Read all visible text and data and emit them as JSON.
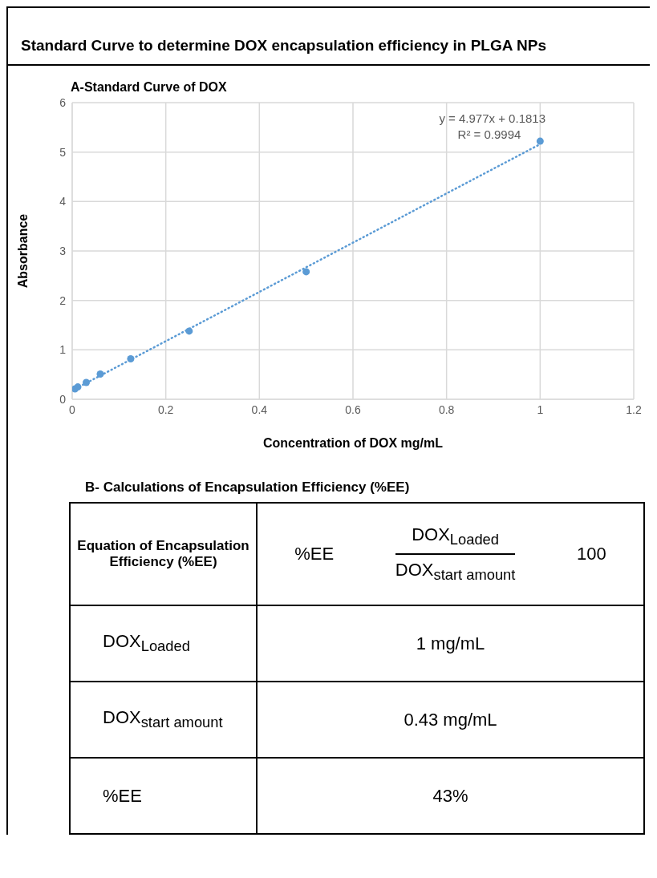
{
  "chart_data": [
    {
      "type": "scatter",
      "title": "Standard Curve to determine DOX encapsulation efficiency in PLGA NPs",
      "subtitle": "A-Standard Curve of DOX",
      "xlabel": "Concentration of DOX mg/mL",
      "ylabel": "Absorbance",
      "series": [
        {
          "type": "scatter",
          "color": "#5b9bd5",
          "marker": "circle",
          "x": [
            0.006,
            0.012,
            0.03,
            0.06,
            0.125,
            0.25,
            0.5,
            1
          ],
          "values": [
            0.21,
            0.25,
            0.34,
            0.51,
            0.82,
            1.38,
            2.58,
            5.22
          ]
        },
        {
          "type": "line",
          "color": "#5b9bd5",
          "line_style": "dotted",
          "marker": "none",
          "x": [
            0,
            1
          ],
          "values": [
            0.18,
            5.16
          ]
        }
      ],
      "annotations": [
        "y = 4.977x + 0.1813",
        "R² = 0.9994"
      ],
      "xlim": [
        0,
        1.2
      ],
      "xticks": [
        0,
        0.2,
        0.4,
        0.6,
        0.8,
        1,
        1.2
      ],
      "ylim": [
        0,
        6
      ],
      "yticks": [
        0,
        1,
        2,
        3,
        4,
        5,
        6
      ],
      "grid": true
    },
    {
      "type": "other",
      "title": "B- Calculations of Encapsulation Efficiency (%EE)",
      "annotations": [
        "Equation of Encapsulation Efficiency (%EE)",
        "%EE",
        "DOX$_{Loaded}$",
        "DOX$_{start amount}$",
        "100",
        "DOX$_{Loaded}$",
        "1 mg/mL",
        "DOX$_{start amount}$",
        "0.43 mg/mL",
        "%EE",
        "43%"
      ]
    }
  ]
}
